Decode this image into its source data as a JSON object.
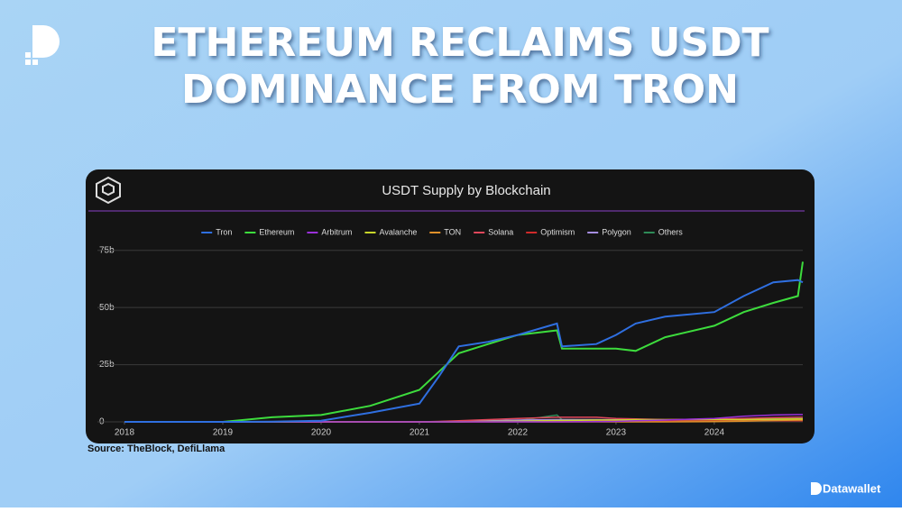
{
  "headline": {
    "lines": [
      "ETHEREUM RECLAIMS USDT",
      "DOMINANCE FROM TRON"
    ]
  },
  "source": "Source: TheBlock, DefiLlama",
  "brand": "Datawallet",
  "chart_data": {
    "type": "line",
    "title": "USDT Supply by Blockchain",
    "x": [
      2018,
      2019,
      2019.5,
      2020,
      2020.5,
      2021,
      2021.2,
      2021.4,
      2021.7,
      2022,
      2022.4,
      2022.45,
      2022.8,
      2023,
      2023.2,
      2023.5,
      2024,
      2024.3,
      2024.6,
      2024.85,
      2024.9
    ],
    "xlim": [
      2018,
      2024.9
    ],
    "xticks": [
      2018,
      2019,
      2020,
      2021,
      2022,
      2023,
      2024
    ],
    "ylim": [
      0,
      80
    ],
    "yticks": [
      0,
      {
        "value": 25,
        "label": "25b"
      },
      {
        "value": 50,
        "label": "50b"
      },
      {
        "value": 75,
        "label": "75b"
      }
    ],
    "grid": true,
    "series": [
      {
        "name": "Tron",
        "color": "#2f6fe0",
        "values": [
          0,
          0,
          0.1,
          0.5,
          4,
          8,
          20,
          33,
          35,
          38,
          43,
          33,
          34,
          38,
          43,
          46,
          48,
          55,
          61,
          62,
          61
        ]
      },
      {
        "name": "Ethereum",
        "color": "#3ddc3d",
        "values": [
          0,
          0,
          2,
          3,
          7,
          14,
          22,
          30,
          34,
          38,
          40,
          32,
          32,
          32,
          31,
          37,
          42,
          48,
          52,
          55,
          70
        ]
      },
      {
        "name": "Arbitrum",
        "color": "#9b30d9",
        "values": [
          0,
          0,
          0,
          0,
          0,
          0,
          0,
          0,
          0,
          0,
          0,
          0,
          0.1,
          0.2,
          0.5,
          0.8,
          1.5,
          2.5,
          3,
          3.2,
          3.2
        ]
      },
      {
        "name": "Avalanche",
        "color": "#c8d62a",
        "values": [
          0,
          0,
          0,
          0,
          0,
          0,
          0,
          0,
          0.2,
          0.3,
          0.6,
          0.6,
          0.8,
          0.8,
          1,
          1,
          1,
          1,
          1.2,
          1.3,
          1.3
        ]
      },
      {
        "name": "TON",
        "color": "#e0902a",
        "values": [
          0,
          0,
          0,
          0,
          0,
          0,
          0,
          0,
          0,
          0,
          0,
          0,
          0,
          0,
          0,
          0,
          0.1,
          0.3,
          0.6,
          0.8,
          0.8
        ]
      },
      {
        "name": "Solana",
        "color": "#e0475b",
        "values": [
          0,
          0,
          0,
          0,
          0,
          0,
          0.2,
          0.5,
          1,
          1.5,
          2,
          2,
          2,
          1.5,
          1.3,
          1,
          1.2,
          1.5,
          1.8,
          2,
          2
        ]
      },
      {
        "name": "Optimism",
        "color": "#d02a2a",
        "values": [
          0,
          0,
          0,
          0,
          0,
          0,
          0,
          0,
          0,
          0.1,
          0.2,
          0.2,
          0.3,
          0.3,
          0.3,
          0.4,
          0.5,
          0.5,
          0.5,
          0.5,
          0.5
        ]
      },
      {
        "name": "Polygon",
        "color": "#a58de0",
        "values": [
          0,
          0,
          0,
          0,
          0,
          0,
          0.1,
          0.3,
          0.5,
          0.8,
          1,
          1,
          1,
          0.9,
          0.9,
          0.8,
          0.8,
          0.9,
          1,
          1,
          1
        ]
      },
      {
        "name": "Others",
        "color": "#2e8b57",
        "values": [
          0,
          0,
          0,
          0,
          0,
          0,
          0,
          0,
          0.2,
          0.5,
          3,
          1,
          0.8,
          0.8,
          0.8,
          0.9,
          1,
          1.2,
          1.4,
          1.5,
          1.5
        ]
      }
    ]
  }
}
